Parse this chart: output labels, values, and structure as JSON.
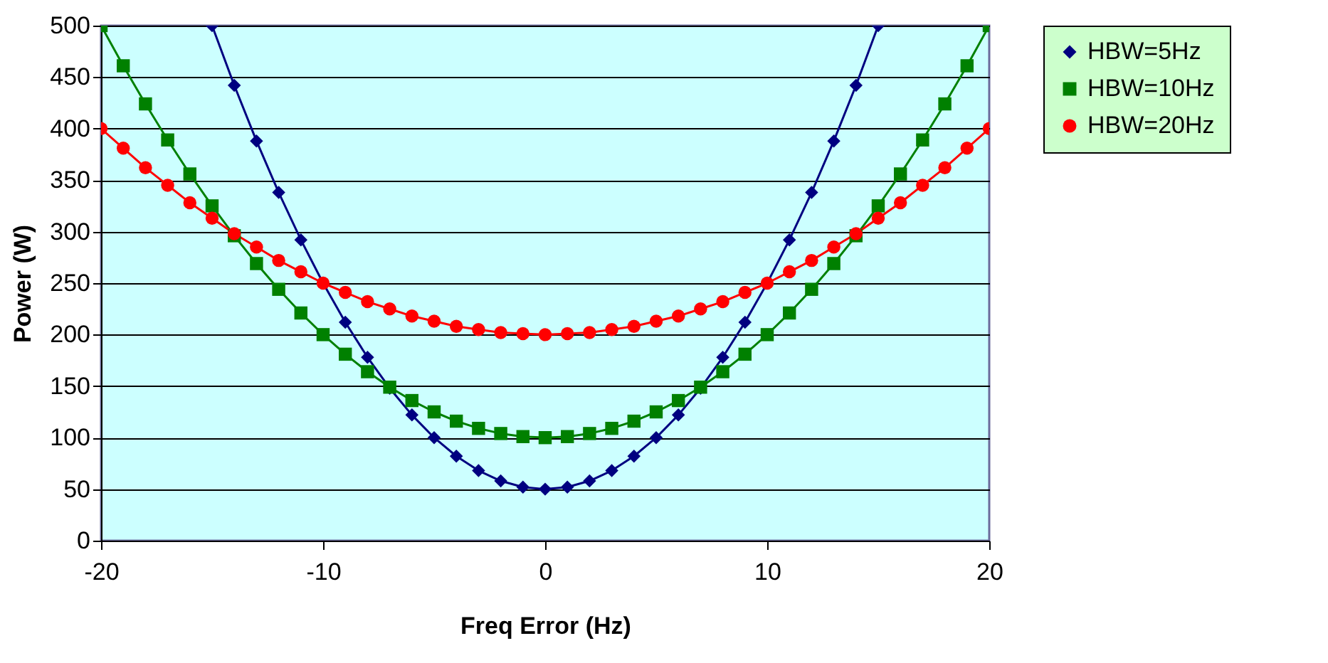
{
  "chart_data": {
    "type": "line",
    "xlabel": "Freq Error (Hz)",
    "ylabel": "Power (W)",
    "xlim": [
      -20,
      20
    ],
    "xticks": [
      -20,
      -10,
      0,
      10,
      20
    ],
    "ylim": [
      0,
      500
    ],
    "yticks": [
      0,
      50,
      100,
      150,
      200,
      250,
      300,
      350,
      400,
      450,
      500
    ],
    "grid": "y",
    "legend": "right",
    "series": [
      {
        "name": "HBW=5Hz",
        "color": "#000080",
        "marker": "diamond",
        "x": [
          -15,
          -14,
          -13,
          -12,
          -11,
          -10,
          -9,
          -8,
          -7,
          -6,
          -5,
          -4,
          -3,
          -2,
          -1,
          0,
          1,
          2,
          3,
          4,
          5,
          6,
          7,
          8,
          9,
          10,
          11,
          12,
          13,
          14,
          15
        ],
        "values": [
          500,
          442,
          388,
          338,
          292,
          250,
          212,
          178,
          148,
          122,
          100,
          82,
          68,
          58,
          52,
          50,
          52,
          58,
          68,
          82,
          100,
          122,
          148,
          178,
          212,
          250,
          292,
          338,
          388,
          442,
          500
        ]
      },
      {
        "name": "HBW=10Hz",
        "color": "#008000",
        "marker": "square",
        "x": [
          -20,
          -19,
          -18,
          -17,
          -16,
          -15,
          -14,
          -13,
          -12,
          -11,
          -10,
          -9,
          -8,
          -7,
          -6,
          -5,
          -4,
          -3,
          -2,
          -1,
          0,
          1,
          2,
          3,
          4,
          5,
          6,
          7,
          8,
          9,
          10,
          11,
          12,
          13,
          14,
          15,
          16,
          17,
          18,
          19,
          20
        ],
        "values": [
          500,
          461,
          424,
          389,
          356,
          325,
          296,
          269,
          244,
          221,
          200,
          181,
          164,
          149,
          136,
          125,
          116,
          109,
          104,
          101,
          100,
          101,
          104,
          109,
          116,
          125,
          136,
          149,
          164,
          181,
          200,
          221,
          244,
          269,
          296,
          325,
          356,
          389,
          424,
          461,
          500
        ]
      },
      {
        "name": "HBW=20Hz",
        "color": "#ff0000",
        "marker": "circle",
        "x": [
          -20,
          -19,
          -18,
          -17,
          -16,
          -15,
          -14,
          -13,
          -12,
          -11,
          -10,
          -9,
          -8,
          -7,
          -6,
          -5,
          -4,
          -3,
          -2,
          -1,
          0,
          1,
          2,
          3,
          4,
          5,
          6,
          7,
          8,
          9,
          10,
          11,
          12,
          13,
          14,
          15,
          16,
          17,
          18,
          19,
          20
        ],
        "values": [
          400,
          381,
          362,
          345,
          328,
          313,
          298,
          285,
          272,
          261,
          250,
          241,
          232,
          225,
          218,
          213,
          208,
          205,
          202,
          201,
          200,
          201,
          202,
          205,
          208,
          213,
          218,
          225,
          232,
          241,
          250,
          261,
          272,
          285,
          298,
          313,
          328,
          345,
          362,
          381,
          400
        ]
      }
    ]
  }
}
